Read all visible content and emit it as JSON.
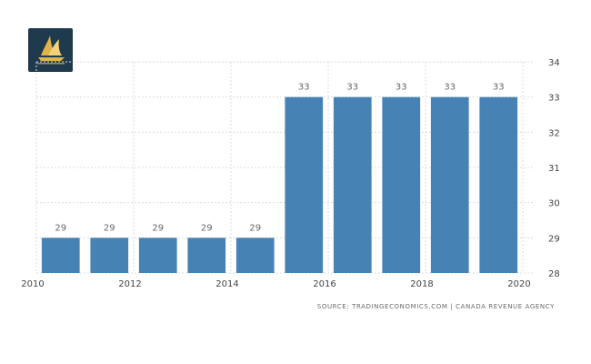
{
  "logo": {
    "icon": "sail-emblem-logo",
    "colors": {
      "background": "#1f3a4c",
      "accent": "#e0b24a"
    }
  },
  "source": "SOURCE: TRADINGECONOMICS.COM  |  CANADA REVENUE AGENCY",
  "chart_data": {
    "type": "bar",
    "categories": [
      2011,
      2012,
      2013,
      2014,
      2015,
      2016,
      2017,
      2018,
      2019,
      2020
    ],
    "values": [
      29,
      29,
      29,
      29,
      29,
      33,
      33,
      33,
      33,
      33
    ],
    "x_ticks": [
      "2010",
      "2012",
      "2014",
      "2016",
      "2018",
      "2020"
    ],
    "y_ticks": [
      "28",
      "29",
      "30",
      "31",
      "32",
      "33",
      "34"
    ],
    "xlim": [
      2010,
      2020
    ],
    "ylim": [
      28,
      34
    ],
    "title": "",
    "xlabel": "",
    "ylabel": "",
    "grid": true,
    "y_axis_side": "right",
    "bar_color": "#4682b4",
    "show_data_labels": true
  }
}
